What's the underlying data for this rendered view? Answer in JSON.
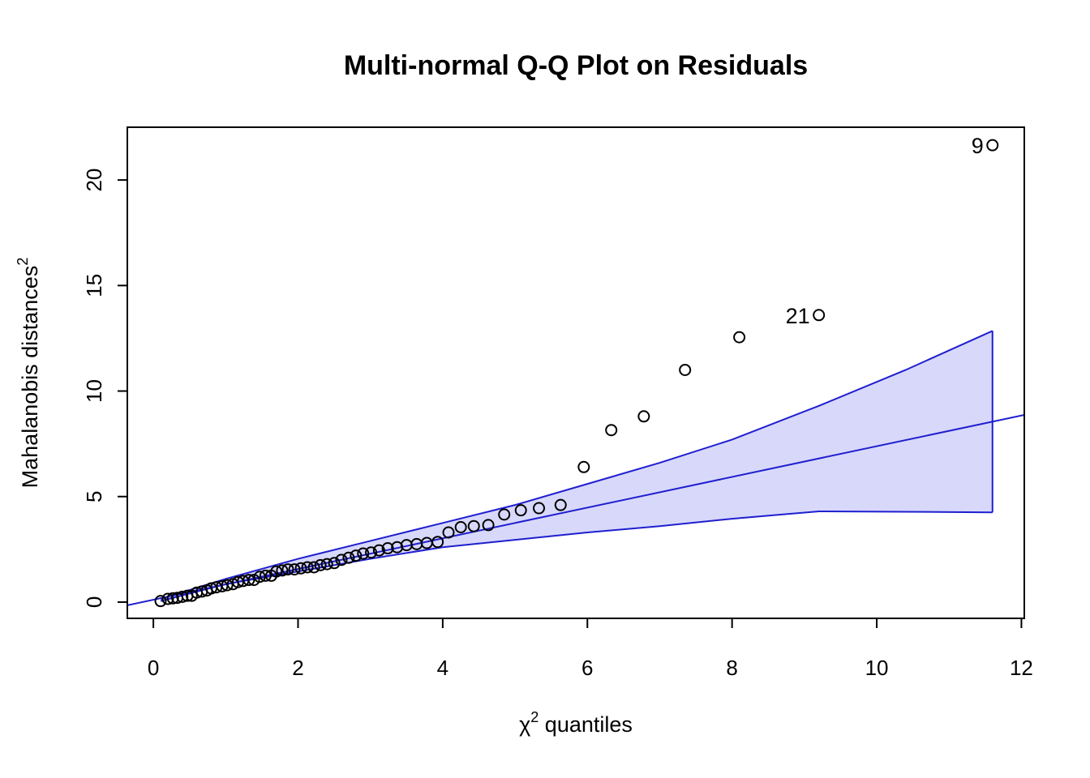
{
  "chart_data": {
    "type": "scatter",
    "title": "Multi-normal Q-Q Plot on Residuals",
    "xlabel": [
      "χ",
      "2",
      " quantiles"
    ],
    "ylabel": [
      "Mahalanobis distances",
      "2"
    ],
    "x": [
      0.1,
      0.2,
      0.27,
      0.33,
      0.4,
      0.47,
      0.53,
      0.6,
      0.67,
      0.74,
      0.8,
      0.87,
      0.95,
      1.02,
      1.1,
      1.17,
      1.24,
      1.32,
      1.39,
      1.47,
      1.55,
      1.63,
      1.7,
      1.78,
      1.86,
      1.95,
      2.04,
      2.13,
      2.22,
      2.31,
      2.4,
      2.5,
      2.6,
      2.7,
      2.8,
      2.9,
      3.01,
      3.12,
      3.24,
      3.37,
      3.5,
      3.64,
      3.78,
      3.93,
      4.08,
      4.25,
      4.43,
      4.63,
      4.85,
      5.08,
      5.33,
      5.63,
      5.95,
      6.33,
      6.78,
      7.35,
      8.1,
      9.2,
      11.6
    ],
    "values": [
      0.05,
      0.15,
      0.18,
      0.2,
      0.25,
      0.3,
      0.3,
      0.45,
      0.5,
      0.55,
      0.65,
      0.7,
      0.75,
      0.8,
      0.85,
      0.95,
      1.0,
      1.05,
      1.05,
      1.2,
      1.25,
      1.25,
      1.45,
      1.5,
      1.55,
      1.55,
      1.6,
      1.65,
      1.65,
      1.75,
      1.8,
      1.85,
      2.0,
      2.1,
      2.2,
      2.3,
      2.35,
      2.45,
      2.55,
      2.6,
      2.7,
      2.75,
      2.8,
      2.85,
      3.3,
      3.55,
      3.6,
      3.65,
      4.15,
      4.35,
      4.45,
      4.6,
      6.4,
      8.15,
      8.8,
      11.0,
      12.55,
      13.6,
      21.65
    ],
    "point_labels": [
      null,
      null,
      null,
      null,
      null,
      null,
      null,
      null,
      null,
      null,
      null,
      null,
      null,
      null,
      null,
      null,
      null,
      null,
      null,
      null,
      null,
      null,
      null,
      null,
      null,
      null,
      null,
      null,
      null,
      null,
      null,
      null,
      null,
      null,
      null,
      null,
      null,
      null,
      null,
      null,
      null,
      null,
      null,
      null,
      null,
      null,
      null,
      null,
      null,
      null,
      null,
      null,
      null,
      null,
      null,
      null,
      null,
      "21",
      "9"
    ],
    "point_color": "#000000",
    "reference_line": {
      "x": [
        -0.36,
        12.04
      ],
      "y": [
        -0.15,
        8.87
      ],
      "color": "#1f1fd0"
    },
    "envelope": {
      "x": [
        0.1,
        1,
        2,
        3,
        4,
        5,
        6,
        7,
        8,
        9.2,
        10.4,
        11.6
      ],
      "upper": [
        0.15,
        1.1,
        2.05,
        2.9,
        3.75,
        4.6,
        5.6,
        6.6,
        7.7,
        9.3,
        11.0,
        12.85
      ],
      "lower": [
        0.05,
        0.85,
        1.45,
        2.05,
        2.6,
        2.95,
        3.3,
        3.6,
        3.95,
        4.3,
        4.28,
        4.25
      ],
      "fill": "#d8d8fa",
      "color": "#1f1fd0"
    },
    "xlim": [
      -0.36,
      12.04
    ],
    "ylim": [
      -0.77,
      22.5
    ],
    "xticks": [
      0,
      2,
      4,
      6,
      8,
      10,
      12
    ],
    "yticks": [
      0,
      5,
      10,
      15,
      20
    ]
  }
}
